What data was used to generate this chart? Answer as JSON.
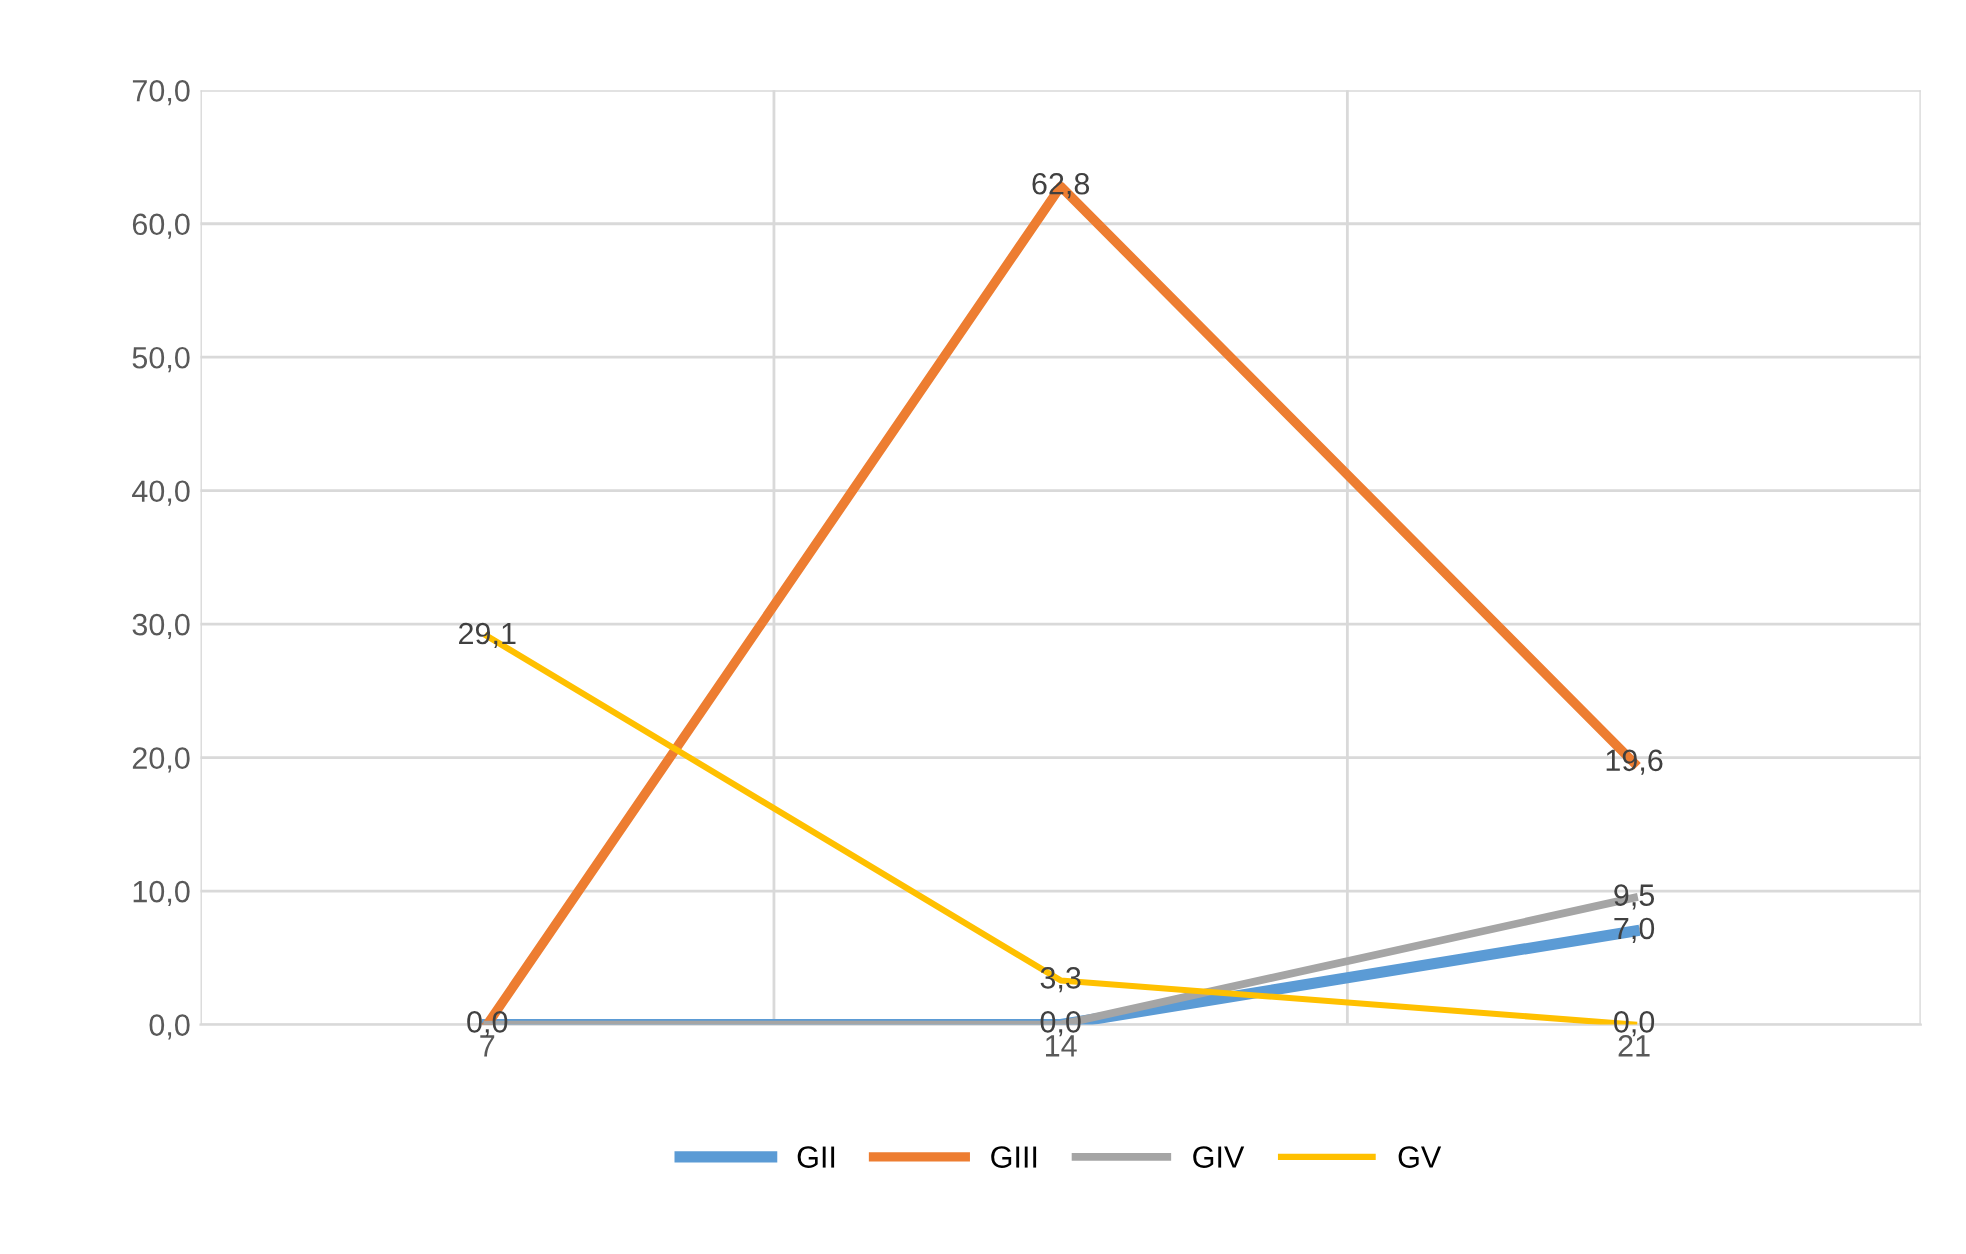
{
  "chart_data": {
    "type": "line",
    "categories": [
      "7",
      "14",
      "21"
    ],
    "series": [
      {
        "name": "GII",
        "color": "#5b9bd5",
        "values": [
          0.0,
          0.0,
          7.0
        ],
        "value_labels": [
          null,
          null,
          "7,0"
        ]
      },
      {
        "name": "GIII",
        "color": "#ed7d31",
        "values": [
          0.0,
          62.8,
          19.6
        ],
        "value_labels": [
          null,
          "62,8",
          "19,6"
        ]
      },
      {
        "name": "GIV",
        "color": "#a5a5a5",
        "values": [
          0.0,
          0.0,
          9.5
        ],
        "value_labels": [
          "0,0",
          "0,0",
          "9,5"
        ]
      },
      {
        "name": "GV",
        "color": "#ffc000",
        "values": [
          29.1,
          3.3,
          0.0
        ],
        "value_labels": [
          "29,1",
          "3,3",
          "0,0"
        ]
      }
    ],
    "ylim": [
      0,
      70
    ],
    "yticks": [
      {
        "value": 0,
        "label": "0,0"
      },
      {
        "value": 10,
        "label": "10,0"
      },
      {
        "value": 20,
        "label": "20,0"
      },
      {
        "value": 30,
        "label": "30,0"
      },
      {
        "value": 40,
        "label": "40,0"
      },
      {
        "value": 50,
        "label": "50,0"
      },
      {
        "value": 60,
        "label": "60,0"
      },
      {
        "value": 70,
        "label": "70,0"
      }
    ],
    "grid": true,
    "legend": "bottom",
    "marker": "none",
    "line_style": "solid"
  }
}
